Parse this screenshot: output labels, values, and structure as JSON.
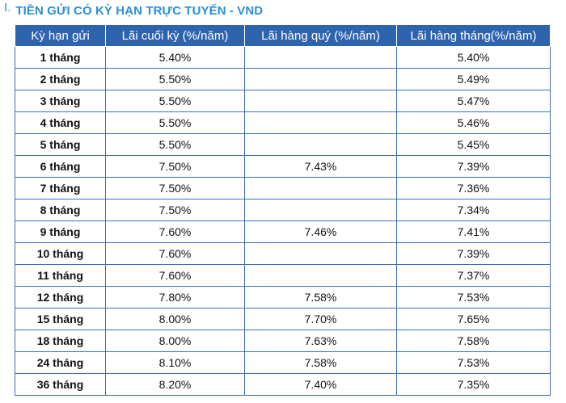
{
  "section": {
    "number": "I.",
    "title": "TIỀN GỬI CÓ KỲ HẠN TRỰC TUYẾN - VND"
  },
  "table": {
    "headers": [
      "Kỳ hạn gửi",
      "Lãi cuối kỳ (%/năm)",
      "Lãi hàng quý (%/năm)",
      "Lãi hàng tháng(%/năm)"
    ],
    "rows": [
      {
        "term": "1 tháng",
        "end": "5.40%",
        "quarterly": "",
        "monthly": "5.40%"
      },
      {
        "term": "2 tháng",
        "end": "5.50%",
        "quarterly": "",
        "monthly": "5.49%"
      },
      {
        "term": "3 tháng",
        "end": "5.50%",
        "quarterly": "",
        "monthly": "5.47%"
      },
      {
        "term": "4 tháng",
        "end": "5.50%",
        "quarterly": "",
        "monthly": "5.46%"
      },
      {
        "term": "5 tháng",
        "end": "5.50%",
        "quarterly": "",
        "monthly": "5.45%"
      },
      {
        "term": "6 tháng",
        "end": "7.50%",
        "quarterly": "7.43%",
        "monthly": "7.39%"
      },
      {
        "term": "7 tháng",
        "end": "7.50%",
        "quarterly": "",
        "monthly": "7.36%"
      },
      {
        "term": "8 tháng",
        "end": "7.50%",
        "quarterly": "",
        "monthly": "7.34%"
      },
      {
        "term": "9 tháng",
        "end": "7.60%",
        "quarterly": "7.46%",
        "monthly": "7.41%"
      },
      {
        "term": "10 tháng",
        "end": "7.60%",
        "quarterly": "",
        "monthly": "7.39%"
      },
      {
        "term": "11 tháng",
        "end": "7.60%",
        "quarterly": "",
        "monthly": "7.37%"
      },
      {
        "term": "12 tháng",
        "end": "7.80%",
        "quarterly": "7.58%",
        "monthly": "7.53%"
      },
      {
        "term": "15 tháng",
        "end": "8.00%",
        "quarterly": "7.70%",
        "monthly": "7.65%"
      },
      {
        "term": "18 tháng",
        "end": "8.00%",
        "quarterly": "7.63%",
        "monthly": "7.58%"
      },
      {
        "term": "24 tháng",
        "end": "8.10%",
        "quarterly": "7.58%",
        "monthly": "7.53%"
      },
      {
        "term": "36 tháng",
        "end": "8.20%",
        "quarterly": "7.40%",
        "monthly": "7.35%"
      }
    ]
  },
  "colors": {
    "heading": "#2a8fd6",
    "header_bg": "#2e63ad",
    "border": "#3b6fb6"
  }
}
